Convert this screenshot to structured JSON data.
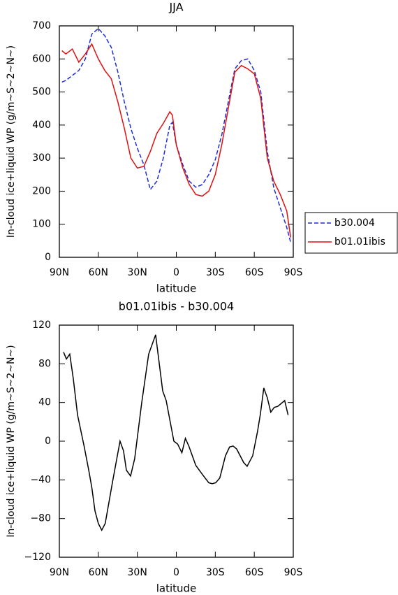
{
  "chart_data": [
    {
      "type": "line",
      "title": "JJA",
      "xlabel": "latitude",
      "ylabel": "In-cloud ice+liquid WP (g/m~S~2~N~)",
      "x": [
        88,
        85,
        80,
        75,
        70,
        65,
        60,
        55,
        50,
        45,
        40,
        35,
        30,
        25,
        20,
        15,
        10,
        5,
        3,
        0,
        -5,
        -10,
        -15,
        -20,
        -25,
        -30,
        -35,
        -40,
        -45,
        -50,
        -55,
        -60,
        -65,
        -70,
        -75,
        -80,
        -85,
        -88
      ],
      "series": [
        {
          "name": "b30.004",
          "color": "#1f2fd0",
          "linestyle": "dashed",
          "values": [
            530,
            535,
            550,
            565,
            600,
            675,
            692,
            670,
            635,
            560,
            470,
            390,
            330,
            280,
            205,
            230,
            300,
            400,
            408,
            340,
            280,
            230,
            212,
            220,
            250,
            295,
            370,
            470,
            570,
            595,
            600,
            565,
            500,
            320,
            210,
            150,
            90,
            45
          ]
        },
        {
          "name": "b01.01ibis",
          "color": "#e01010",
          "linestyle": "solid",
          "values": [
            625,
            615,
            630,
            590,
            615,
            645,
            600,
            565,
            540,
            470,
            390,
            300,
            270,
            275,
            320,
            375,
            405,
            440,
            430,
            340,
            270,
            220,
            190,
            185,
            200,
            250,
            340,
            450,
            560,
            580,
            570,
            555,
            480,
            300,
            230,
            190,
            140,
            60
          ]
        }
      ],
      "xlim": [
        90,
        -90
      ],
      "xticks": [
        {
          "value": 90,
          "label": "90N"
        },
        {
          "value": 60,
          "label": "60N"
        },
        {
          "value": 30,
          "label": "30N"
        },
        0,
        {
          "value": -30,
          "label": "30S"
        },
        {
          "value": -60,
          "label": "60S"
        },
        {
          "value": -90,
          "label": "90S"
        }
      ],
      "ylim": [
        0,
        700
      ],
      "yticks": [
        0,
        100,
        200,
        300,
        400,
        500,
        600,
        700
      ],
      "legend": "right"
    },
    {
      "type": "line",
      "title": "b01.01ibis - b30.004",
      "xlabel": "latitude",
      "ylabel": "In-cloud ice+liquid WP (g/m~S~2~N~)",
      "x": [
        86.8,
        84.6,
        82,
        79.3,
        76,
        71,
        67.4,
        65,
        62.6,
        60,
        57.4,
        54.7,
        48.8,
        43.3,
        40.6,
        38.4,
        35.2,
        32,
        26.6,
        21.3,
        15.9,
        10.5,
        7.8,
        1.9,
        -1,
        -4.3,
        -7,
        -9.6,
        -15,
        -20.4,
        -25,
        -27.6,
        -30.3,
        -33.5,
        -37.8,
        -41,
        -43.7,
        -46.4,
        -51.8,
        -54.5,
        -58.8,
        -62.5,
        -64.7,
        -67.3,
        -70,
        -72.7,
        -75.4,
        -78,
        -80.8,
        -83.4,
        -86
      ],
      "series": [
        {
          "color": "#000000",
          "linestyle": "solid",
          "values": [
            92,
            85,
            90,
            65,
            27,
            -5,
            -30,
            -48,
            -72,
            -85,
            -92,
            -85,
            -40,
            0,
            -10,
            -30,
            -36,
            -18,
            40,
            90,
            110,
            52,
            42,
            0,
            -3,
            -12,
            3,
            -5,
            -25,
            -35,
            -43,
            -44,
            -43,
            -38,
            -15,
            -6,
            -5,
            -8,
            -22,
            -26,
            -15,
            10,
            28,
            55,
            45,
            30,
            35,
            36,
            39,
            42,
            27
          ]
        }
      ],
      "xlim": [
        90,
        -90
      ],
      "xticks": [
        {
          "value": 90,
          "label": "90N"
        },
        {
          "value": 60,
          "label": "60N"
        },
        {
          "value": 30,
          "label": "30N"
        },
        0,
        {
          "value": -30,
          "label": "30S"
        },
        {
          "value": -60,
          "label": "60S"
        },
        {
          "value": -90,
          "label": "90S"
        }
      ],
      "ylim": [
        -120,
        120
      ],
      "yticks": [
        {
          "value": -120,
          "label": "−120"
        },
        {
          "value": -80,
          "label": "−80"
        },
        {
          "value": -40,
          "label": "−40"
        },
        0,
        40,
        80,
        120
      ]
    }
  ]
}
